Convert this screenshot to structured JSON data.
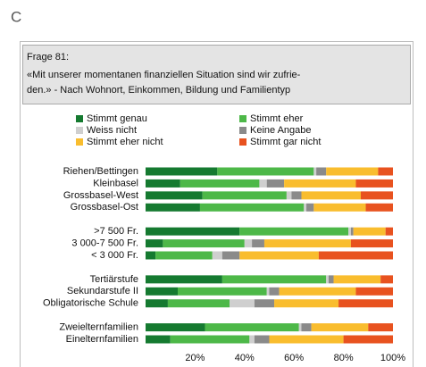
{
  "panel_label": "C",
  "chart_data": {
    "type": "stacked-barh",
    "title": "Frage 81:",
    "subtitle": [
      "«Mit unserer momentanen finanziellen Situation sind wir zufrie-",
      "den.» - Nach Wohnort, Einkommen, Bildung und Familientyp"
    ],
    "categories": [
      "Riehen/Bettingen",
      "Kleinbasel",
      "Grossbasel-West",
      "Grossbasel-Ost",
      null,
      ">7 500 Fr.",
      "3 000-7 500 Fr.",
      "< 3 000 Fr.",
      null,
      "Tertiärstufe",
      "Sekundarstufe II",
      "Obligatorische Schule",
      null,
      "Zweielternfamilien",
      "Einelternfamilien"
    ],
    "series": [
      {
        "name": "Stimmt genau",
        "color": "#157a30",
        "values": [
          29,
          14,
          23,
          22,
          null,
          38,
          7,
          4,
          null,
          31,
          13,
          9,
          null,
          24,
          10
        ]
      },
      {
        "name": "Stimmt eher",
        "color": "#4db848",
        "values": [
          39,
          32,
          34,
          42,
          null,
          44,
          33,
          23,
          null,
          42,
          36,
          25,
          null,
          38,
          32
        ]
      },
      {
        "name": "Weiss nicht",
        "color": "#cfcfcf",
        "values": [
          1,
          3,
          2,
          1,
          null,
          1,
          3,
          4,
          null,
          1,
          1,
          10,
          null,
          1,
          2
        ]
      },
      {
        "name": "Keine Angabe",
        "color": "#8a8a8a",
        "values": [
          4,
          7,
          4,
          3,
          null,
          1,
          5,
          7,
          null,
          2,
          4,
          8,
          null,
          4,
          6
        ]
      },
      {
        "name": "Stimmt eher nicht",
        "color": "#f9bd2e",
        "values": [
          21,
          29,
          24,
          21,
          null,
          13,
          35,
          32,
          null,
          19,
          31,
          26,
          null,
          23,
          30
        ]
      },
      {
        "name": "Stimmt gar nicht",
        "color": "#e8521f",
        "values": [
          6,
          15,
          13,
          11,
          null,
          3,
          17,
          30,
          null,
          5,
          15,
          22,
          null,
          10,
          20
        ]
      }
    ],
    "xlim": [
      0,
      100
    ],
    "xticks": [
      {
        "value": 20,
        "label": "20%"
      },
      {
        "value": 40,
        "label": "40%"
      },
      {
        "value": 60,
        "label": "60%"
      },
      {
        "value": 80,
        "label": "80%"
      },
      {
        "value": 100,
        "label": "100%"
      }
    ],
    "grid": false
  }
}
